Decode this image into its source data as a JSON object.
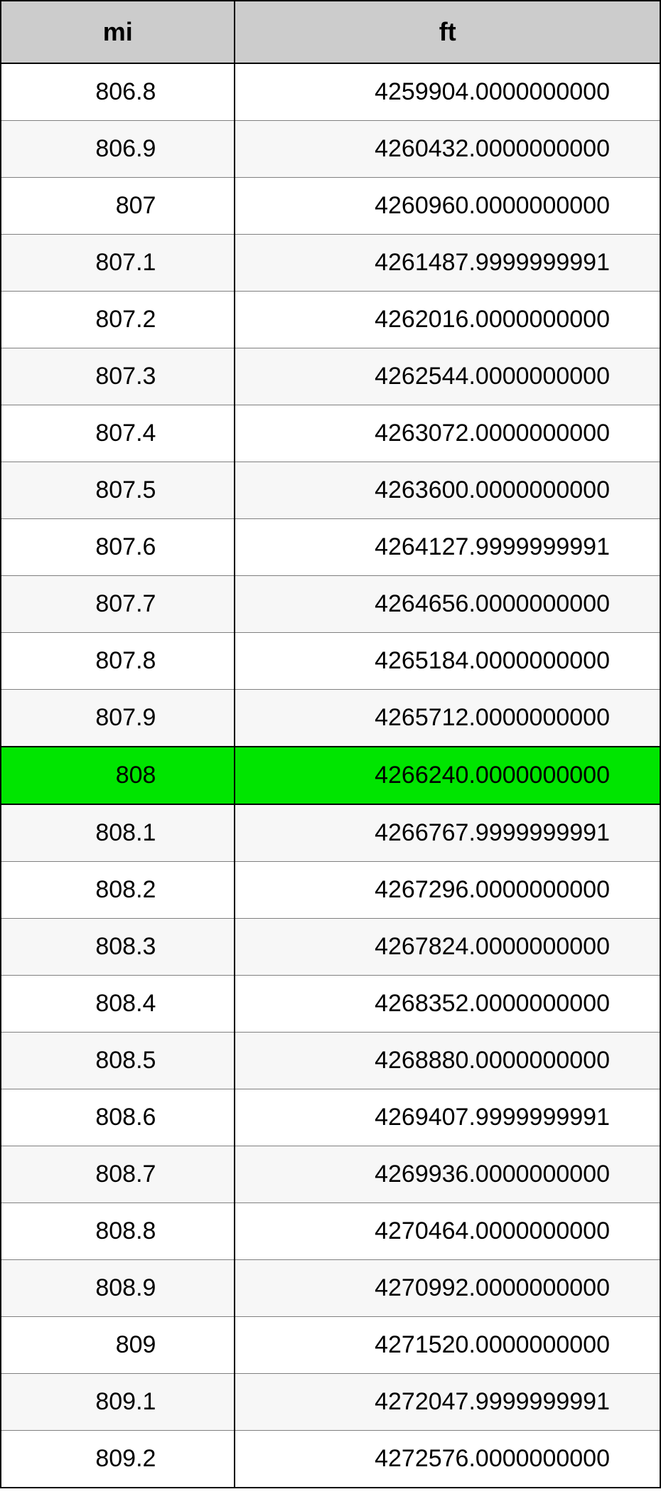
{
  "table": {
    "type": "table",
    "columns": [
      "mi",
      "ft"
    ],
    "column_widths_pct": [
      35.5,
      64.5
    ],
    "header_bg": "#cccccc",
    "header_fontsize_pt": 27,
    "header_font_weight": "bold",
    "cell_fontsize_pt": 25,
    "border_color_outer": "#000000",
    "border_color_inner": "#808080",
    "row_alt_bg": "#f7f7f7",
    "highlight_bg": "#00e500",
    "highlight_row_index": 12,
    "text_color": "#000000",
    "rows": [
      {
        "mi": "806.8",
        "ft": "4259904.0000000000",
        "alt": false
      },
      {
        "mi": "806.9",
        "ft": "4260432.0000000000",
        "alt": true
      },
      {
        "mi": "807",
        "ft": "4260960.0000000000",
        "alt": false
      },
      {
        "mi": "807.1",
        "ft": "4261487.9999999991",
        "alt": true
      },
      {
        "mi": "807.2",
        "ft": "4262016.0000000000",
        "alt": false
      },
      {
        "mi": "807.3",
        "ft": "4262544.0000000000",
        "alt": true
      },
      {
        "mi": "807.4",
        "ft": "4263072.0000000000",
        "alt": false
      },
      {
        "mi": "807.5",
        "ft": "4263600.0000000000",
        "alt": true
      },
      {
        "mi": "807.6",
        "ft": "4264127.9999999991",
        "alt": false
      },
      {
        "mi": "807.7",
        "ft": "4264656.0000000000",
        "alt": true
      },
      {
        "mi": "807.8",
        "ft": "4265184.0000000000",
        "alt": false
      },
      {
        "mi": "807.9",
        "ft": "4265712.0000000000",
        "alt": true
      },
      {
        "mi": "808",
        "ft": "4266240.0000000000",
        "alt": false,
        "highlight": true
      },
      {
        "mi": "808.1",
        "ft": "4266767.9999999991",
        "alt": true
      },
      {
        "mi": "808.2",
        "ft": "4267296.0000000000",
        "alt": false
      },
      {
        "mi": "808.3",
        "ft": "4267824.0000000000",
        "alt": true
      },
      {
        "mi": "808.4",
        "ft": "4268352.0000000000",
        "alt": false
      },
      {
        "mi": "808.5",
        "ft": "4268880.0000000000",
        "alt": true
      },
      {
        "mi": "808.6",
        "ft": "4269407.9999999991",
        "alt": false
      },
      {
        "mi": "808.7",
        "ft": "4269936.0000000000",
        "alt": true
      },
      {
        "mi": "808.8",
        "ft": "4270464.0000000000",
        "alt": false
      },
      {
        "mi": "808.9",
        "ft": "4270992.0000000000",
        "alt": true
      },
      {
        "mi": "809",
        "ft": "4271520.0000000000",
        "alt": false
      },
      {
        "mi": "809.1",
        "ft": "4272047.9999999991",
        "alt": true
      },
      {
        "mi": "809.2",
        "ft": "4272576.0000000000",
        "alt": false
      }
    ]
  }
}
